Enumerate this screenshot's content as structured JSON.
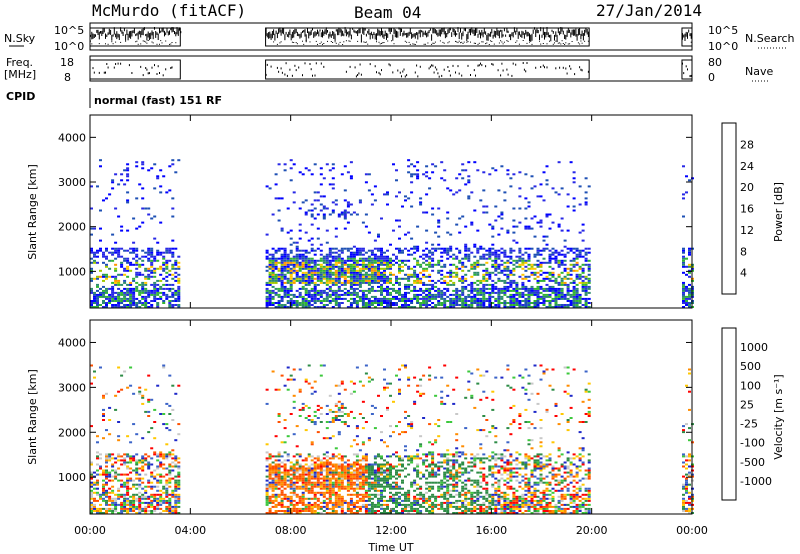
{
  "header": {
    "station": "McMurdo (fitACF)",
    "beam": "Beam 04",
    "date": "27/Jan/2014"
  },
  "strips": {
    "nsky_label": "N.Sky",
    "nsky_ticks": [
      "10^5",
      "10^0"
    ],
    "nsearch_label": "N.Search",
    "nsearch_ticks": [
      "10^5",
      "10^0"
    ],
    "freq_label": "Freq.",
    "freq_unit": "[MHz]",
    "freq_ticks": [
      "18",
      "8"
    ],
    "nave_label": "Nave",
    "nave_ticks": [
      "80",
      "0"
    ],
    "cpid_label": "CPID",
    "cpid_value": "normal (fast) 151 RF"
  },
  "chart_data": [
    {
      "type": "heatmap",
      "name": "power",
      "ylabel": "Slant Range [km]",
      "yticks": [
        "4000",
        "3000",
        "2000",
        "1000"
      ],
      "ylim": [
        180,
        4500
      ],
      "xlim": [
        0,
        24
      ],
      "colorbar_label": "Power [dB]",
      "colorbar_ticks": [
        "28",
        "24",
        "20",
        "16",
        "12",
        "8",
        "4"
      ],
      "colorbar_colors": [
        "#ff0000",
        "#ff5a00",
        "#ff9600",
        "#ffc800",
        "#a0c800",
        "#32b432",
        "#2d8c6e",
        "#1e50b4",
        "#2828e6",
        "#0000ff"
      ],
      "data_intervals_hours": [
        [
          0,
          3.6
        ],
        [
          7,
          19.9
        ],
        [
          23.6,
          24
        ]
      ]
    },
    {
      "type": "heatmap",
      "name": "velocity",
      "ylabel": "Slant Range [km]",
      "yticks": [
        "4000",
        "3000",
        "2000",
        "1000"
      ],
      "ylim": [
        180,
        4500
      ],
      "xlim": [
        0,
        24
      ],
      "xlabel": "Time UT",
      "xticks": [
        "00:00",
        "04:00",
        "08:00",
        "12:00",
        "16:00",
        "20:00",
        "00:00"
      ],
      "colorbar_label": "Velocity [m s⁻¹]",
      "colorbar_ticks": [
        "1000",
        "500",
        "100",
        "25",
        "-25",
        "-100",
        "-500",
        "-1000"
      ],
      "colorbar_colors": [
        "#1e28c8",
        "#3c64c8",
        "#2d8c46",
        "#3cc83c",
        "#c8c8c8",
        "#ffc800",
        "#ff8c00",
        "#ff5000",
        "#ff0000"
      ],
      "data_intervals_hours": [
        [
          0,
          3.6
        ],
        [
          7,
          19.9
        ],
        [
          23.6,
          24
        ]
      ]
    }
  ]
}
